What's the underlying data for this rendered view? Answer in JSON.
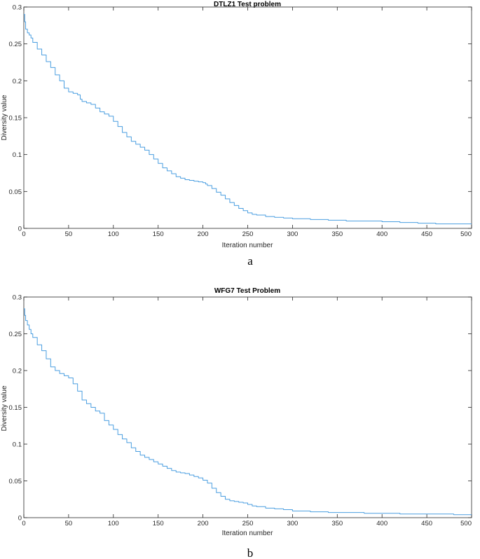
{
  "chart_data": [
    {
      "type": "line",
      "title": "DTLZ1 Test problem",
      "xlabel": "Iteration number",
      "ylabel": "Diversity value",
      "caption": "a",
      "xlim": [
        0,
        500
      ],
      "ylim": [
        0,
        0.3
      ],
      "xticks": [
        0,
        50,
        100,
        150,
        200,
        250,
        300,
        350,
        400,
        450,
        500
      ],
      "yticks": [
        0,
        0.05,
        0.1,
        0.15,
        0.2,
        0.25,
        0.3
      ],
      "ytick_labels": [
        "0",
        "0.05",
        "0.1",
        "0.15",
        "0.2",
        "0.25",
        "0.3"
      ],
      "grid": false,
      "line_color": "#4a9ee0",
      "series": [
        {
          "x": [
            0,
            1,
            2,
            4,
            6,
            8,
            10,
            15,
            20,
            25,
            30,
            35,
            40,
            45,
            50,
            55,
            60,
            63,
            65,
            70,
            75,
            80,
            85,
            90,
            95,
            100,
            105,
            110,
            115,
            120,
            125,
            130,
            135,
            140,
            145,
            150,
            155,
            160,
            165,
            170,
            175,
            180,
            185,
            190,
            195,
            200,
            203,
            205,
            210,
            215,
            220,
            225,
            230,
            235,
            240,
            245,
            250,
            255,
            260,
            270,
            280,
            290,
            300,
            310,
            320,
            330,
            340,
            350,
            360,
            380,
            400,
            420,
            440,
            460,
            480,
            500
          ],
          "y": [
            0.29,
            0.28,
            0.27,
            0.265,
            0.262,
            0.258,
            0.252,
            0.243,
            0.235,
            0.226,
            0.218,
            0.208,
            0.2,
            0.19,
            0.185,
            0.183,
            0.181,
            0.175,
            0.172,
            0.17,
            0.168,
            0.163,
            0.158,
            0.155,
            0.152,
            0.145,
            0.138,
            0.13,
            0.124,
            0.118,
            0.114,
            0.11,
            0.106,
            0.1,
            0.094,
            0.088,
            0.082,
            0.078,
            0.074,
            0.07,
            0.068,
            0.066,
            0.065,
            0.064,
            0.063,
            0.062,
            0.06,
            0.058,
            0.054,
            0.049,
            0.045,
            0.04,
            0.035,
            0.031,
            0.027,
            0.024,
            0.021,
            0.019,
            0.018,
            0.016,
            0.015,
            0.014,
            0.013,
            0.013,
            0.012,
            0.012,
            0.011,
            0.011,
            0.01,
            0.01,
            0.009,
            0.008,
            0.007,
            0.006,
            0.006,
            0.006
          ]
        }
      ]
    },
    {
      "type": "line",
      "title": "WFG7 Test Problem",
      "xlabel": "Iteration number",
      "ylabel": "Diversity value",
      "caption": "b",
      "xlim": [
        0,
        500
      ],
      "ylim": [
        0,
        0.3
      ],
      "xticks": [
        0,
        50,
        100,
        150,
        200,
        250,
        300,
        350,
        400,
        450,
        500
      ],
      "yticks": [
        0,
        0.05,
        0.1,
        0.15,
        0.2,
        0.25,
        0.3
      ],
      "ytick_labels": [
        "0",
        "0.05",
        "0.1",
        "0.15",
        "0.2",
        "0.25",
        "0.3"
      ],
      "grid": false,
      "line_color": "#4a9ee0",
      "series": [
        {
          "x": [
            0,
            1,
            2,
            4,
            6,
            8,
            10,
            15,
            20,
            25,
            30,
            35,
            40,
            45,
            50,
            55,
            60,
            65,
            70,
            75,
            80,
            85,
            90,
            95,
            100,
            105,
            110,
            115,
            120,
            125,
            130,
            135,
            140,
            145,
            150,
            155,
            160,
            165,
            170,
            175,
            180,
            185,
            190,
            195,
            200,
            205,
            210,
            215,
            220,
            225,
            230,
            235,
            240,
            245,
            250,
            255,
            260,
            270,
            280,
            290,
            300,
            320,
            340,
            360,
            380,
            400,
            420,
            440,
            460,
            480,
            500
          ],
          "y": [
            0.284,
            0.275,
            0.268,
            0.262,
            0.256,
            0.25,
            0.245,
            0.235,
            0.227,
            0.216,
            0.205,
            0.2,
            0.196,
            0.193,
            0.19,
            0.182,
            0.172,
            0.16,
            0.155,
            0.15,
            0.145,
            0.142,
            0.132,
            0.126,
            0.12,
            0.113,
            0.107,
            0.102,
            0.095,
            0.09,
            0.085,
            0.082,
            0.079,
            0.076,
            0.073,
            0.07,
            0.067,
            0.064,
            0.062,
            0.061,
            0.06,
            0.058,
            0.056,
            0.054,
            0.051,
            0.047,
            0.04,
            0.034,
            0.029,
            0.025,
            0.023,
            0.022,
            0.021,
            0.02,
            0.018,
            0.016,
            0.015,
            0.013,
            0.012,
            0.011,
            0.009,
            0.008,
            0.007,
            0.007,
            0.006,
            0.006,
            0.005,
            0.005,
            0.005,
            0.004,
            0.004
          ]
        }
      ]
    }
  ]
}
